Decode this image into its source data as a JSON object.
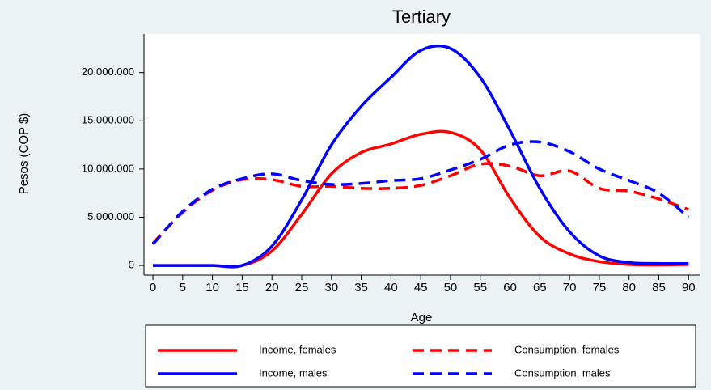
{
  "chart_data": {
    "type": "line",
    "title": "Tertiary",
    "x_label": "Age",
    "y_label": "Pesos (COP $)",
    "x": [
      0,
      5,
      10,
      15,
      20,
      25,
      30,
      35,
      40,
      45,
      50,
      55,
      60,
      65,
      70,
      75,
      80,
      85,
      90
    ],
    "xlim": [
      -1.5,
      92
    ],
    "xticks": [
      0,
      5,
      10,
      15,
      20,
      25,
      30,
      35,
      40,
      45,
      50,
      55,
      60,
      65,
      70,
      75,
      80,
      85,
      90
    ],
    "ylim": [
      -1000000,
      24000000
    ],
    "yticks": [
      {
        "value": 0,
        "label": "0"
      },
      {
        "value": 5000000,
        "label": "5.000.000"
      },
      {
        "value": 10000000,
        "label": "10.000.000"
      },
      {
        "value": 15000000,
        "label": "15.000.000"
      },
      {
        "value": 20000000,
        "label": "20.000.000"
      }
    ],
    "series": [
      {
        "name": "Income, females",
        "color": "#ff0000",
        "dash": false,
        "values": [
          0,
          0,
          0,
          0,
          1500000,
          5300000,
          9500000,
          11700000,
          12600000,
          13600000,
          13800000,
          12000000,
          7000000,
          3000000,
          1200000,
          400000,
          100000,
          50000,
          100000
        ]
      },
      {
        "name": "Consumption, females",
        "color": "#ff0000",
        "dash": true,
        "values": [
          2300000,
          5500000,
          7800000,
          8900000,
          8900000,
          8200000,
          8200000,
          8000000,
          8000000,
          8300000,
          9300000,
          10500000,
          10300000,
          9300000,
          9800000,
          8000000,
          7700000,
          6900000,
          5800000
        ]
      },
      {
        "name": "Income, males",
        "color": "#0000ff",
        "dash": false,
        "values": [
          0,
          0,
          0,
          0,
          2000000,
          6800000,
          12500000,
          16500000,
          19500000,
          22300000,
          22500000,
          19500000,
          14000000,
          8000000,
          3500000,
          1000000,
          300000,
          200000,
          200000
        ]
      },
      {
        "name": "Consumption, males",
        "color": "#0000ff",
        "dash": true,
        "values": [
          2200000,
          5600000,
          7900000,
          9000000,
          9500000,
          8800000,
          8400000,
          8500000,
          8800000,
          9000000,
          9900000,
          11000000,
          12500000,
          12800000,
          11800000,
          10000000,
          8800000,
          7500000,
          5000000
        ]
      }
    ]
  }
}
